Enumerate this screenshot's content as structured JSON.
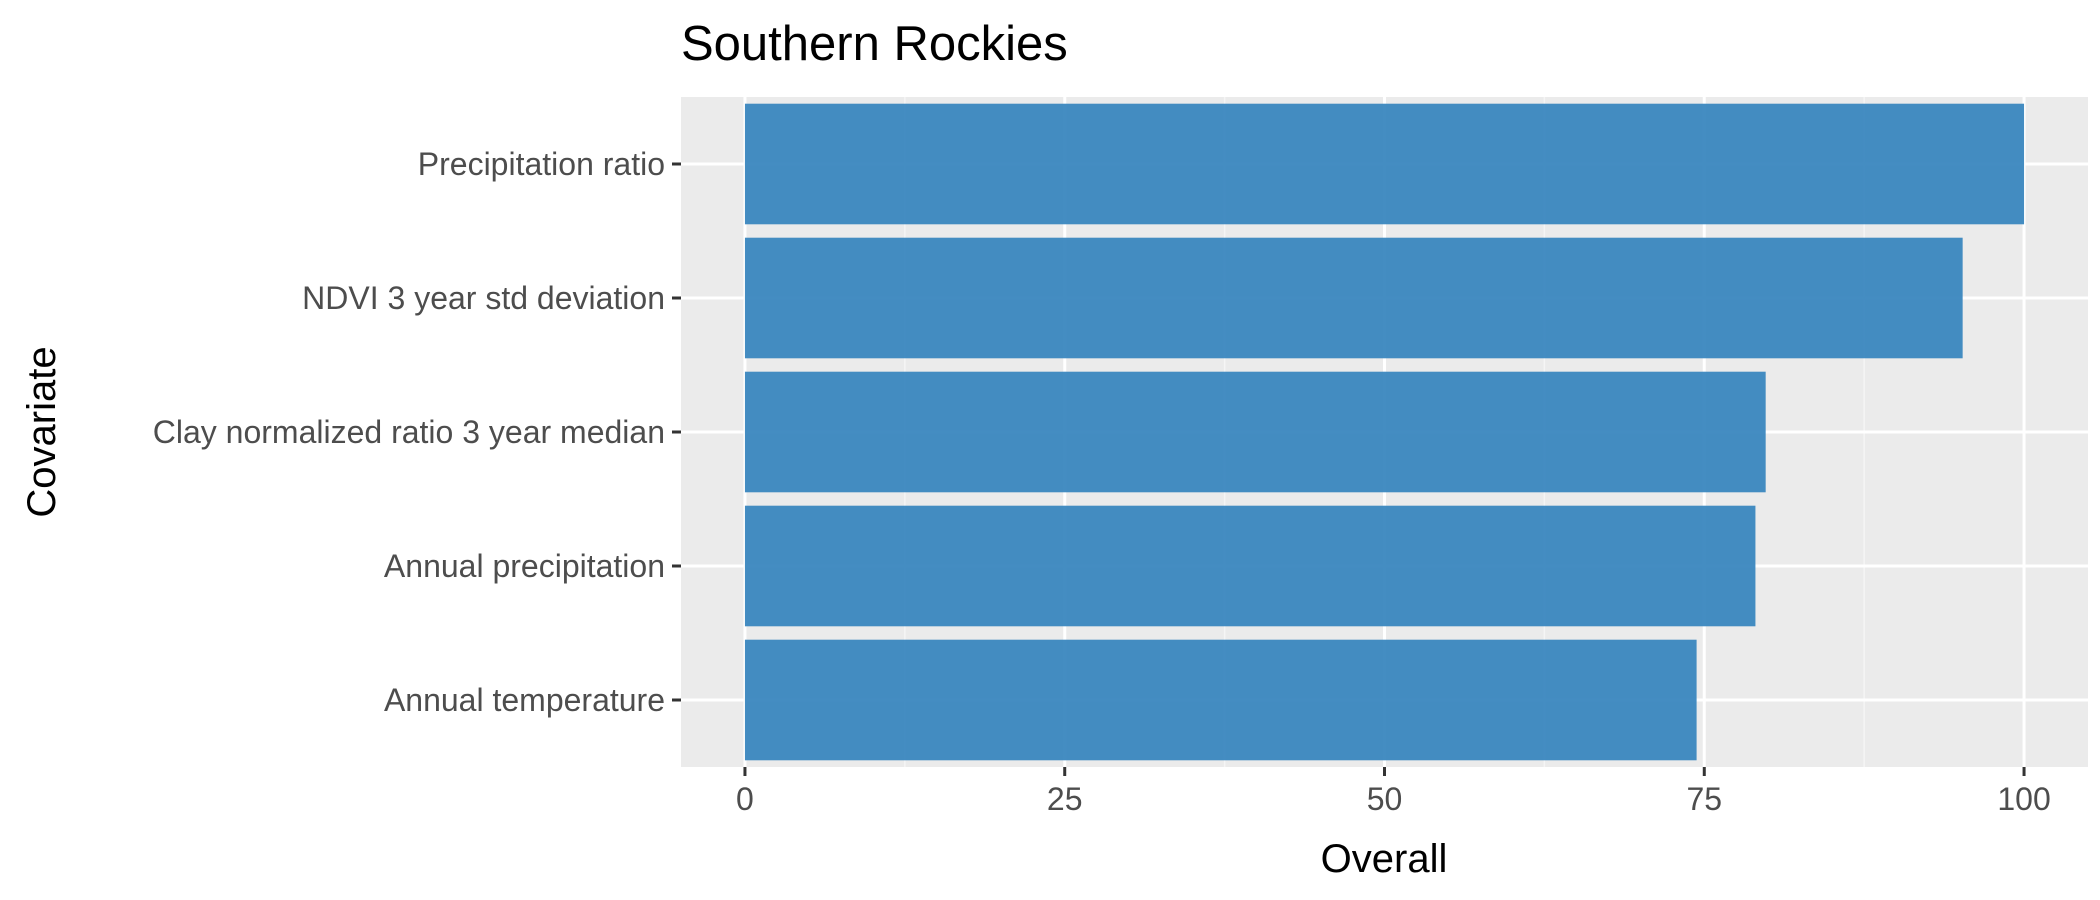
{
  "chart_data": {
    "type": "bar",
    "orientation": "horizontal",
    "title": "Southern Rockies",
    "xlabel": "Overall",
    "ylabel": "Covariate",
    "categories": [
      "Precipitation ratio",
      "NDVI 3 year std deviation",
      "Clay normalized ratio 3 year median",
      "Annual precipitation",
      "Annual temperature"
    ],
    "values": [
      100,
      95.2,
      79.8,
      79,
      74.4
    ],
    "xlim": [
      -5,
      105
    ],
    "x_ticks": [
      0,
      25,
      50,
      75,
      100
    ],
    "x_tick_labels": [
      "0",
      "25",
      "50",
      "75",
      "100"
    ],
    "grid": true,
    "legend": "none",
    "colors": {
      "bar": "#3A87BF",
      "panel_background": "#EBEBEB",
      "grid_major": "#FFFFFF",
      "grid_minor": "#F5F5F5",
      "tick_label": "#4D4D4D",
      "axis_tick": "#333333"
    }
  }
}
